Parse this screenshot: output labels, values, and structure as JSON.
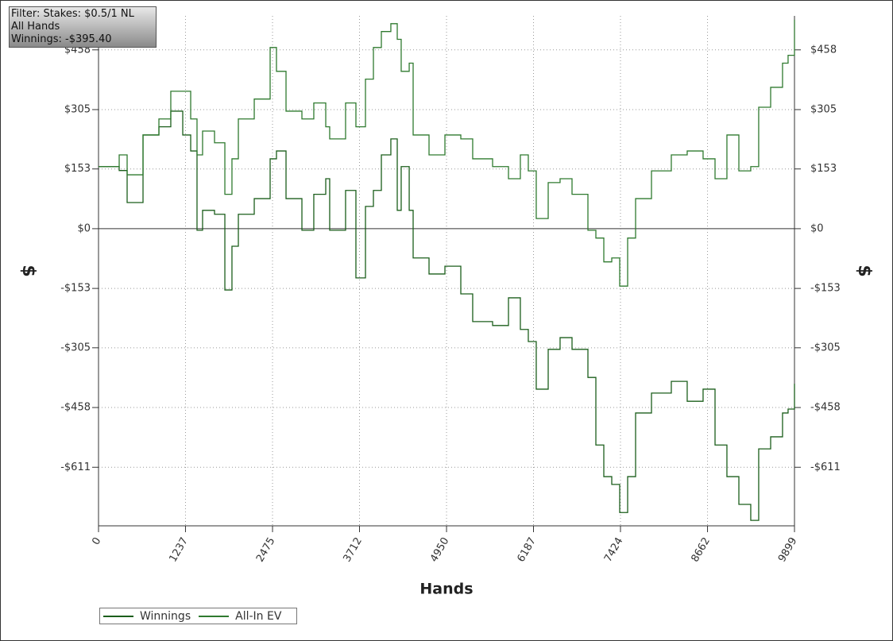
{
  "chart_data": {
    "type": "line",
    "info_box": [
      "Filter: Stakes: $0.5/1 NL",
      "All Hands",
      "Winnings: -$395.40"
    ],
    "x_label": "Hands",
    "y_label": "$",
    "x": [
      0,
      294,
      407,
      633,
      859,
      1028,
      1198,
      1311,
      1401,
      1480,
      1650,
      1797,
      1898,
      1989,
      2215,
      2441,
      2531,
      2667,
      2893,
      3062,
      3232,
      3288,
      3514,
      3661,
      3797,
      3910,
      4023,
      4158,
      4249,
      4305,
      4419,
      4475,
      4701,
      4927,
      5153,
      5322,
      5605,
      5831,
      6000,
      6113,
      6226,
      6396,
      6565,
      6735,
      6961,
      7074,
      7187,
      7300,
      7413,
      7526,
      7639,
      7865,
      8147,
      8373,
      8599,
      8769,
      8938,
      9108,
      9277,
      9390,
      9560,
      9729,
      9808,
      9899
    ],
    "series": [
      {
        "name": "Winnings",
        "color": "#1b5e1b",
        "values": [
          159,
          149,
          67,
          240,
          261,
          301,
          240,
          199,
          -4,
          47,
          37,
          -157,
          -45,
          37,
          77,
          179,
          199,
          77,
          -4,
          88,
          128,
          -4,
          98,
          -126,
          57,
          98,
          189,
          230,
          47,
          159,
          47,
          -75,
          -116,
          -96,
          -167,
          -238,
          -248,
          -177,
          -258,
          -289,
          -411,
          -309,
          -279,
          -309,
          -381,
          -554,
          -635,
          -655,
          -727,
          -635,
          -472,
          -421,
          -391,
          -442,
          -411,
          -554,
          -635,
          -706,
          -747,
          -564,
          -533,
          -472,
          -462,
          -397
        ]
      },
      {
        "name": "All-In EV",
        "color": "#2f7a2f",
        "values": [
          159,
          189,
          138,
          240,
          281,
          352,
          352,
          281,
          189,
          250,
          220,
          88,
          179,
          281,
          332,
          464,
          403,
          301,
          281,
          322,
          261,
          230,
          322,
          261,
          383,
          464,
          505,
          525,
          485,
          403,
          424,
          240,
          189,
          240,
          230,
          179,
          159,
          128,
          189,
          148,
          26,
          118,
          128,
          88,
          -4,
          -24,
          -85,
          -75,
          -147,
          -24,
          77,
          148,
          189,
          199,
          179,
          128,
          240,
          148,
          159,
          311,
          362,
          424,
          444,
          535
        ]
      }
    ],
    "xlim": [
      0,
      9899
    ],
    "xticks": [
      0,
      1237,
      2475,
      3712,
      4950,
      6187,
      7424,
      8662,
      9899
    ],
    "ylim": [
      -761,
      545
    ],
    "yticks": [
      {
        "value": -611,
        "label": "-$611"
      },
      {
        "value": -458,
        "label": "-$458"
      },
      {
        "value": -305,
        "label": "-$305"
      },
      {
        "value": -153,
        "label": "-$153"
      },
      {
        "value": 0,
        "label": "$0"
      },
      {
        "value": 153,
        "label": "$153"
      },
      {
        "value": 305,
        "label": "$305"
      },
      {
        "value": 458,
        "label": "$458"
      }
    ],
    "grid": true
  }
}
